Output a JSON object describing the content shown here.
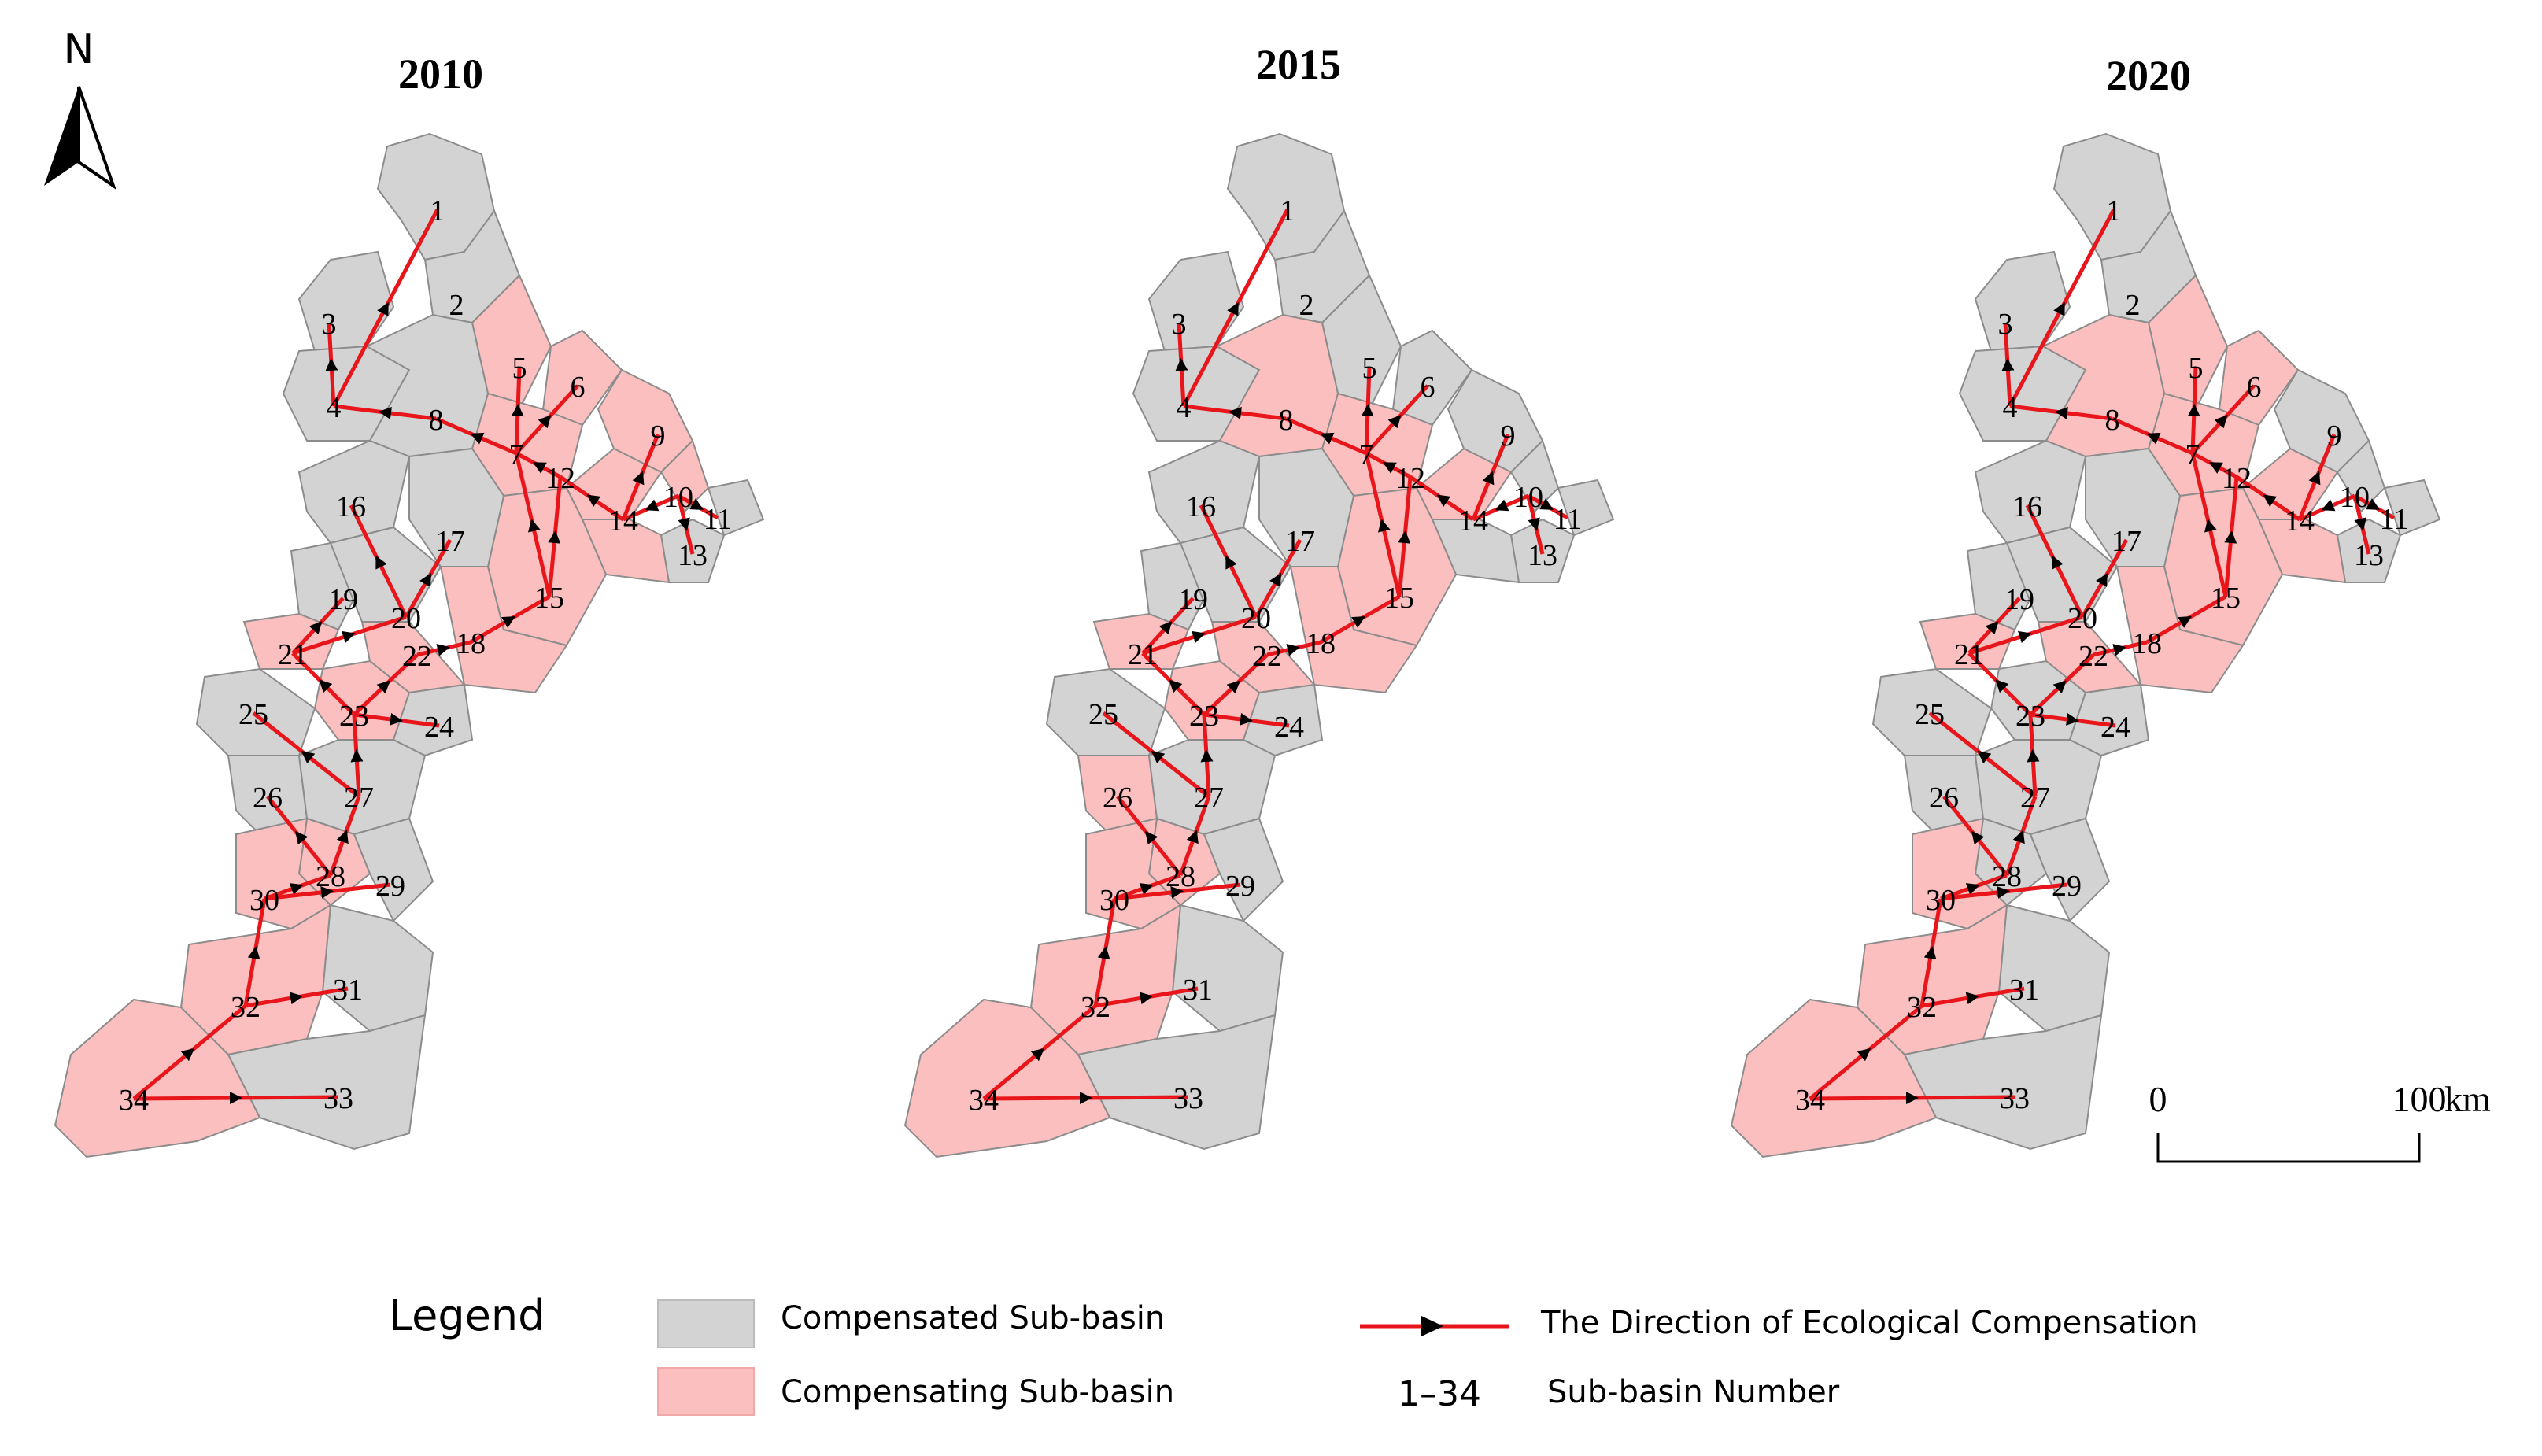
{
  "maps": [
    {
      "year": "2010",
      "compensating": [
        5,
        6,
        7,
        9,
        10,
        12,
        14,
        15,
        18,
        21,
        22,
        23,
        28,
        30,
        32,
        34
      ],
      "sub_basin_numbers": [
        "1",
        "2",
        "3",
        "4",
        "5",
        "6",
        "7",
        "8",
        "9",
        "10",
        "11",
        "12",
        "13",
        "14",
        "15",
        "16",
        "17",
        "18",
        "19",
        "20",
        "21",
        "22",
        "23",
        "24",
        "25",
        "26",
        "27",
        "28",
        "29",
        "30",
        "31",
        "32",
        "33",
        "34"
      ]
    },
    {
      "year": "2015",
      "compensating": [
        7,
        8,
        12,
        15,
        18,
        21,
        22,
        23,
        26,
        28,
        30,
        32,
        34
      ],
      "sub_basin_numbers": [
        "1",
        "2",
        "3",
        "4",
        "5",
        "6",
        "7",
        "8",
        "9",
        "10",
        "11",
        "12",
        "13",
        "14",
        "15",
        "16",
        "17",
        "18",
        "19",
        "20",
        "21",
        "22",
        "23",
        "24",
        "25",
        "26",
        "27",
        "28",
        "29",
        "30",
        "31",
        "32",
        "33",
        "34"
      ]
    },
    {
      "year": "2020",
      "compensating": [
        5,
        6,
        7,
        8,
        12,
        14,
        15,
        18,
        21,
        22,
        30,
        32,
        34
      ],
      "sub_basin_numbers": [
        "1",
        "2",
        "3",
        "4",
        "5",
        "6",
        "7",
        "8",
        "9",
        "10",
        "11",
        "12",
        "13",
        "14",
        "15",
        "16",
        "17",
        "18",
        "19",
        "20",
        "21",
        "22",
        "23",
        "24",
        "25",
        "26",
        "27",
        "28",
        "29",
        "30",
        "31",
        "32",
        "33",
        "34"
      ]
    }
  ],
  "north_arrow": {
    "label": "N"
  },
  "scale_bar": {
    "start": "0",
    "end": "100",
    "unit": "km"
  },
  "legend": {
    "title": "Legend",
    "compensated": "Compensated Sub-basin",
    "compensating": "Compensating Sub-basin",
    "direction": "The Direction of Ecological Compensation",
    "number_symbol": "1–34",
    "number_label": "Sub-basin Number"
  },
  "colors": {
    "compensated": "#d3d3d3",
    "compensating": "#fbbfbf",
    "flow": "#e8151b",
    "boundary": "#8c8c8c"
  }
}
